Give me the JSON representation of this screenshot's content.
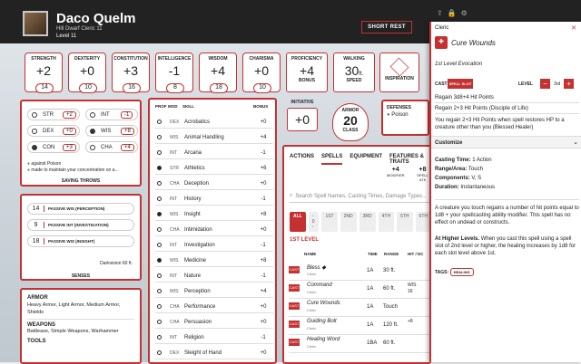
{
  "header": {
    "name": "Daco Quelm",
    "subtitle": "Hill Dwarf  Cleric 11",
    "level": "Level 11",
    "short_rest": "SHORT REST"
  },
  "abilities": [
    {
      "label": "STRENGTH",
      "mod": "+2",
      "score": "14"
    },
    {
      "label": "DEXTERITY",
      "mod": "+0",
      "score": "10"
    },
    {
      "label": "CONSTITUTION",
      "mod": "+3",
      "score": "16"
    },
    {
      "label": "INTELLIGENCE",
      "mod": "-1",
      "score": "8"
    },
    {
      "label": "WISDOM",
      "mod": "+4",
      "score": "18"
    },
    {
      "label": "CHARISMA",
      "mod": "+0",
      "score": "10"
    }
  ],
  "proficiency": {
    "label": "PROFICIENCY",
    "value": "+4",
    "sub": "BONUS"
  },
  "walking": {
    "label": "WALKING",
    "value": "30",
    "unit": "ft.",
    "sub": "SPEED"
  },
  "inspiration": {
    "label": "INSPIRATION"
  },
  "initiative": {
    "label": "INITIATIVE",
    "value": "+0"
  },
  "armor": {
    "label": "ARMOR",
    "value": "20",
    "sub": "CLASS"
  },
  "defenses": {
    "label": "DEFENSES",
    "value": "Poison"
  },
  "saves": {
    "rows": [
      [
        "STR",
        "+2",
        "INT",
        "-1"
      ],
      [
        "DEX",
        "+0",
        "WIS",
        "+8"
      ],
      [
        "CON",
        "+3",
        "CHA",
        "+4"
      ]
    ],
    "note1": "against Poison",
    "note2": "made to maintain your concentration on a...",
    "title": "SAVING THROWS"
  },
  "senses": {
    "rows": [
      [
        "14",
        "PASSIVE WIS (PERCEPTION)"
      ],
      [
        "9",
        "PASSIVE INT (INVESTIGATION)"
      ],
      [
        "18",
        "PASSIVE WIS (INSIGHT)"
      ]
    ],
    "darkvision": "Darkvision 60 ft.",
    "title": "SENSES"
  },
  "profs": {
    "armor_t": "ARMOR",
    "armor": "Heavy Armor, Light Armor, Medium Armor, Shields",
    "weap_t": "WEAPONS",
    "weap": "Battleaxe, Simple Weapons, Warhammer",
    "tools_t": "TOOLS"
  },
  "skills": {
    "headers": [
      "PROF",
      "MOD",
      "SKILL",
      "BONUS"
    ],
    "rows": [
      [
        "DEX",
        "Acrobatics",
        "+0",
        false
      ],
      [
        "WIS",
        "Animal Handling",
        "+4",
        false
      ],
      [
        "INT",
        "Arcana",
        "-1",
        false
      ],
      [
        "STR",
        "Athletics",
        "+6",
        true
      ],
      [
        "CHA",
        "Deception",
        "+0",
        false
      ],
      [
        "INT",
        "History",
        "-1",
        false
      ],
      [
        "WIS",
        "Insight",
        "+8",
        true
      ],
      [
        "CHA",
        "Intimidation",
        "+0",
        false
      ],
      [
        "INT",
        "Investigation",
        "-1",
        false
      ],
      [
        "WIS",
        "Medicine",
        "+8",
        true
      ],
      [
        "INT",
        "Nature",
        "-1",
        false
      ],
      [
        "WIS",
        "Perception",
        "+4",
        false
      ],
      [
        "CHA",
        "Performance",
        "+0",
        false
      ],
      [
        "CHA",
        "Persuasion",
        "+0",
        false
      ],
      [
        "INT",
        "Religion",
        "-1",
        false
      ],
      [
        "DEX",
        "Sleight of Hand",
        "+0",
        false
      ]
    ]
  },
  "tabs": [
    "ACTIONS",
    "SPELLS",
    "EQUIPMENT",
    "FEATURES & TRAITS"
  ],
  "spell_mod": {
    "value": "+4",
    "label": "MODIFIER"
  },
  "spell_atk": {
    "value": "+8",
    "label": "SPELL ATK"
  },
  "spell_search": "Search Spell Names, Casting Times, Damage Types...",
  "spell_levels": [
    "ALL",
    "- 0 -",
    "1ST",
    "2ND",
    "3RD",
    "4TH",
    "5TH",
    "6TH"
  ],
  "spell_level_title": "1ST LEVEL",
  "spell_cols": [
    "NAME",
    "TIME",
    "RANGE",
    "HIT / DC"
  ],
  "spells": [
    {
      "name": "Bless ◆",
      "sub": "Cleric",
      "time": "1A",
      "range": "30 ft."
    },
    {
      "name": "Command",
      "sub": "Cleric",
      "time": "1A",
      "range": "60 ft.",
      "dc": "WIS 16"
    },
    {
      "name": "Cure Wounds",
      "sub": "Cleric",
      "time": "1A",
      "range": "Touch"
    },
    {
      "name": "Guiding Bolt",
      "sub": "Cleric",
      "time": "1A",
      "range": "120 ft.",
      "dc": "+8"
    },
    {
      "name": "Healing Word",
      "sub": "Cleric",
      "time": "1BA",
      "range": "60 ft."
    }
  ],
  "spell_btn": "CAST",
  "sidebar": {
    "cls": "Cleric",
    "title": "Cure Wounds",
    "level_desc": "1st Level Evocation",
    "cast": "CAST",
    "slot": "SPELL SLOT",
    "level_label": "LEVEL",
    "level_val": "3rd",
    "regain1": "Regain 3d8+4 Hit Points",
    "regain2": "Regain 2+3 Hit Points (Disciple of Life)",
    "regain3": "You regain 2+3 Hit Points when spell restores HP to a creature other than you (Blessed Healer)",
    "customize": "Customize",
    "ct_l": "Casting Time:",
    "ct": "1 Action",
    "rg_l": "Range/Area:",
    "rg": "Touch",
    "cp_l": "Components:",
    "cp": "V, S",
    "du_l": "Duration:",
    "du": "Instantaneous",
    "desc": "A creature you touch regains a number of hit points equal to 1d8 + your spellcasting ability modifier. This spell has no effect on undead or constructs.",
    "higher_l": "At Higher Levels.",
    "higher": "When you cast this spell using a spell slot of 2nd level or higher, the healing increases by 1d8 for each slot level above 1st.",
    "tags_l": "TAGS:",
    "tag": "HEALING"
  }
}
